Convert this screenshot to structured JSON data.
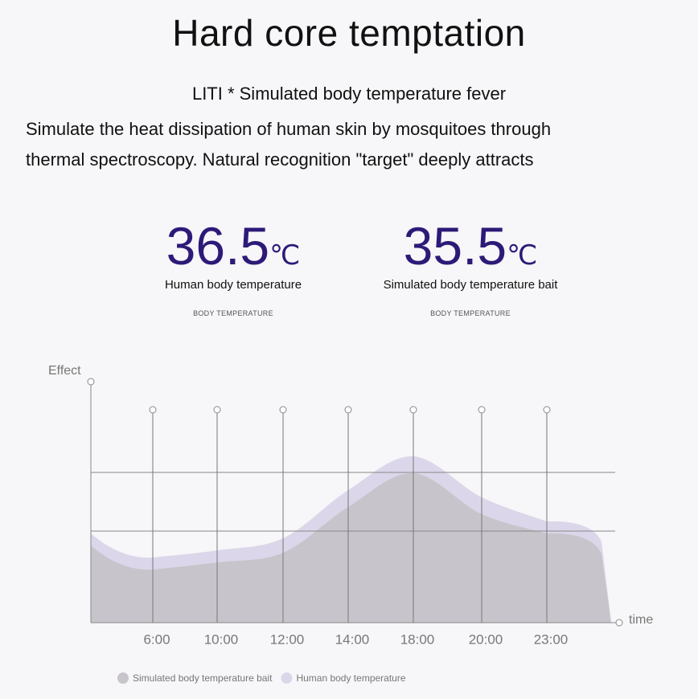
{
  "header": {
    "title": "Hard core temptation",
    "subtitle": "LITI * Simulated body temperature fever",
    "description": [
      "Simulate the heat dissipation of human skin by mosquitoes through",
      "thermal spectroscopy. Natural recognition \"target\" deeply attracts"
    ]
  },
  "stats": [
    {
      "value": "36.5",
      "unit": "℃",
      "label": "Human body temperature",
      "caption": "BODY TEMPERATURE"
    },
    {
      "value": "35.5",
      "unit": "℃",
      "label": "Simulated body temperature bait",
      "caption": "BODY TEMPERATURE"
    }
  ],
  "chart_data": {
    "type": "area",
    "y_label": "Effect",
    "x_label": "time",
    "categories": [
      "6:00",
      "10:00",
      "12:00",
      "14:00",
      "18:00",
      "20:00",
      "23:00"
    ],
    "ylim": [
      0,
      100
    ],
    "series": [
      {
        "name": "Simulated body temperature bait",
        "color": "#c8c4cb",
        "values": [
          22,
          25,
          29,
          48,
          62,
          45,
          37
        ]
      },
      {
        "name": "Human body temperature",
        "color": "#dcd6ea",
        "values": [
          27,
          30,
          35,
          55,
          69,
          52,
          42
        ]
      }
    ]
  }
}
